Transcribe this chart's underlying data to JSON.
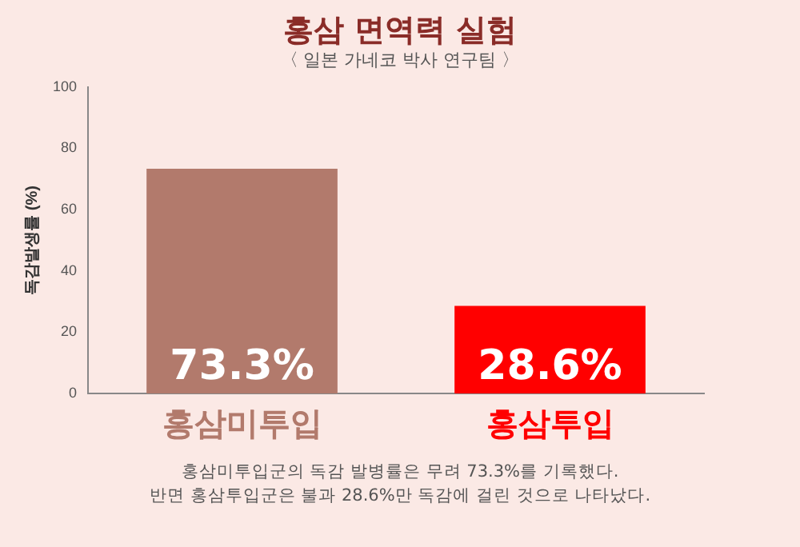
{
  "chart_data": {
    "type": "bar",
    "title": "홍삼 면역력 실험",
    "subtitle": "〈 일본 가네코 박사 연구팀 〉",
    "ylabel": "독감발생률 (%)",
    "categories": [
      "홍삼미투입",
      "홍삼투입"
    ],
    "values": [
      73.3,
      28.6
    ],
    "colors": [
      "#b27a6c",
      "#ff0000"
    ],
    "value_labels": [
      "73.3%",
      "28.6%"
    ],
    "ylim": [
      0,
      100
    ],
    "yticks": [
      0,
      20,
      40,
      60,
      80,
      100
    ],
    "grid": false,
    "annotations": [
      "홍삼미투입군의 독감 발병률은 무려 73.3%를 기록했다.",
      "반면 홍삼투입군은 불과 28.6%만 독감에 걸린 것으로 나타났다."
    ]
  }
}
